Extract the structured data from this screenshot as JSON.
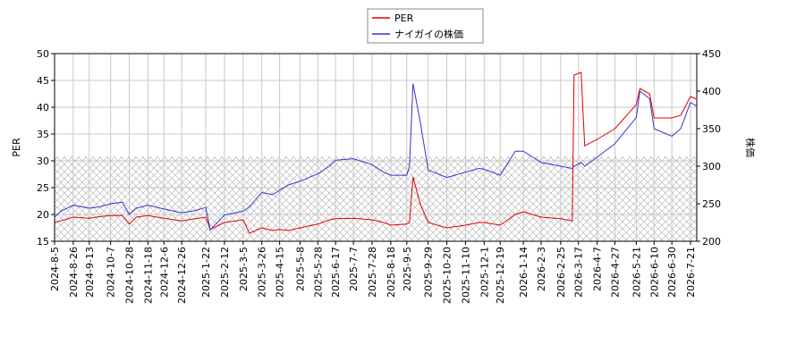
{
  "chart_data": {
    "type": "line",
    "x": [
      "2024-8-5",
      "2024-8-12",
      "2024-8-26",
      "2024-9-13",
      "2024-9-25",
      "2024-10-7",
      "2024-10-20",
      "2024-10-28",
      "2024-11-5",
      "2024-11-18",
      "2024-12-6",
      "2024-12-26",
      "2025-1-10",
      "2025-1-22",
      "2025-1-27",
      "2025-2-12",
      "2025-3-5",
      "2025-3-12",
      "2025-3-26",
      "2025-4-7",
      "2025-4-15",
      "2025-4-25",
      "2025-5-8",
      "2025-5-28",
      "2025-6-10",
      "2025-6-17",
      "2025-7-7",
      "2025-7-28",
      "2025-8-10",
      "2025-8-18",
      "2025-9-5",
      "2025-9-8",
      "2025-9-12",
      "2025-9-20",
      "2025-9-29",
      "2025-10-20",
      "2025-11-10",
      "2025-11-25",
      "2025-12-1",
      "2025-12-19",
      "2026-1-5",
      "2026-1-14",
      "2026-2-3",
      "2026-2-25",
      "2026-3-10",
      "2026-3-12",
      "2026-3-20",
      "2026-3-24",
      "2026-4-7",
      "2026-4-27",
      "2026-5-21",
      "2026-5-25",
      "2026-6-5",
      "2026-6-10",
      "2026-6-30",
      "2026-7-10",
      "2026-7-21",
      "2026-7-28"
    ],
    "series": [
      {
        "name": "PER",
        "color": "#dd0000",
        "values": [
          18.5,
          18.8,
          19.5,
          19.3,
          19.6,
          19.8,
          19.8,
          18.2,
          19.5,
          19.8,
          19.3,
          18.8,
          19.2,
          19.5,
          17.2,
          18.5,
          19.0,
          16.5,
          17.5,
          17.0,
          17.2,
          17.0,
          17.5,
          18.2,
          19.0,
          19.2,
          19.3,
          19.0,
          18.5,
          18.0,
          18.2,
          18.5,
          27.0,
          22.0,
          18.5,
          17.5,
          18.0,
          18.5,
          18.5,
          18.0,
          20.0,
          20.5,
          19.5,
          19.2,
          18.8,
          46.0,
          46.5,
          32.8,
          34.0,
          36.0,
          40.5,
          43.5,
          42.5,
          38.0,
          38.0,
          38.5,
          42.0,
          41.5
        ]
      },
      {
        "name": "ナイガイの株価",
        "color": "#3333cc",
        "axis": "y2",
        "values": [
          232,
          240,
          248,
          244,
          246,
          250,
          252,
          236,
          244,
          248,
          243,
          238,
          241,
          245,
          215,
          235,
          240,
          246,
          265,
          262,
          268,
          275,
          280,
          290,
          300,
          308,
          310,
          302,
          292,
          288,
          288,
          300,
          410,
          360,
          295,
          285,
          292,
          297,
          296,
          288,
          320,
          320,
          305,
          300,
          297,
          300,
          305,
          300,
          312,
          330,
          365,
          400,
          390,
          350,
          340,
          350,
          385,
          380
        ]
      }
    ],
    "xlim": [
      "2024-8-5",
      "2026-7-28"
    ],
    "xticks": [
      "2024-8-5",
      "2024-8-26",
      "2024-9-13",
      "2024-10-7",
      "2024-10-28",
      "2024-11-18",
      "2024-12-6",
      "2024-12-26",
      "2025-1-22",
      "2025-2-12",
      "2025-3-5",
      "2025-3-26",
      "2025-4-15",
      "2025-5-8",
      "2025-5-28",
      "2025-6-17",
      "2025-7-7",
      "2025-7-28",
      "2025-8-18",
      "2025-9-5",
      "2025-9-29",
      "2025-10-20",
      "2025-11-10",
      "2025-12-1",
      "2025-12-19",
      "2026-1-14",
      "2026-2-3",
      "2026-2-25",
      "2026-3-17",
      "2026-4-7",
      "2026-4-27",
      "2026-5-21",
      "2026-6-10",
      "2026-6-30",
      "2026-7-21"
    ],
    "ylim": [
      15,
      50
    ],
    "yticks": [
      15,
      20,
      25,
      30,
      35,
      40,
      45,
      50
    ],
    "y2lim": [
      200,
      450
    ],
    "y2ticks": [
      200,
      250,
      300,
      350,
      400,
      450
    ],
    "ylabel": "PER",
    "y2label": "株価",
    "hatch_below": 30.8,
    "grid": true,
    "legend": "top"
  }
}
